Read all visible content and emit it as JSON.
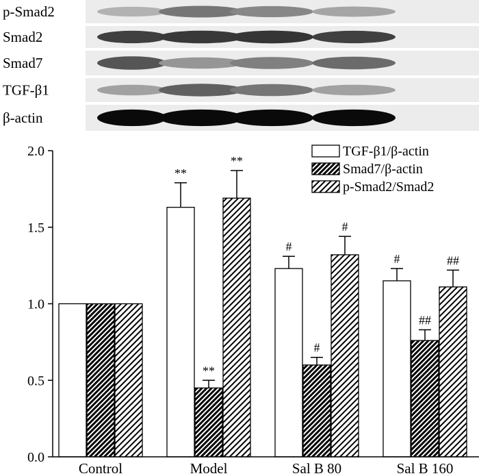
{
  "blot": {
    "rows": [
      {
        "label": "p-Smad2",
        "intensities": [
          0.22,
          0.5,
          0.42,
          0.28
        ]
      },
      {
        "label": "Smad2",
        "intensities": [
          0.75,
          0.78,
          0.8,
          0.75
        ]
      },
      {
        "label": "Smad7",
        "intensities": [
          0.65,
          0.35,
          0.45,
          0.55
        ]
      },
      {
        "label": "TGF-β1",
        "intensities": [
          0.3,
          0.6,
          0.5,
          0.3
        ]
      },
      {
        "label": "β-actin",
        "intensities": [
          1.0,
          1.0,
          1.0,
          1.0
        ]
      }
    ]
  },
  "chart_data": {
    "type": "bar",
    "categories": [
      "Control",
      "Model",
      "Sal B 80",
      "Sal B 160"
    ],
    "ylim": [
      0,
      2.0
    ],
    "yticks": [
      "0.0",
      "0.5",
      "1.0",
      "1.5",
      "2.0"
    ],
    "grid": false,
    "legend_position": "top-right",
    "series": [
      {
        "name": "TGF-β1/β-actin",
        "pattern": "none",
        "values": [
          1.0,
          1.63,
          1.23,
          1.15
        ],
        "errors": [
          0,
          0.16,
          0.08,
          0.08
        ],
        "annotations": [
          "",
          "**",
          "#",
          "#"
        ]
      },
      {
        "name": "Smad7/β-actin",
        "pattern": "dense-diagonal",
        "values": [
          1.0,
          0.45,
          0.6,
          0.76
        ],
        "errors": [
          0,
          0.05,
          0.05,
          0.07
        ],
        "annotations": [
          "",
          "**",
          "#",
          "##"
        ]
      },
      {
        "name": "p-Smad2/Smad2",
        "pattern": "diagonal",
        "values": [
          1.0,
          1.69,
          1.32,
          1.11
        ],
        "errors": [
          0,
          0.18,
          0.12,
          0.11
        ],
        "annotations": [
          "",
          "**",
          "#",
          "##"
        ]
      }
    ]
  }
}
